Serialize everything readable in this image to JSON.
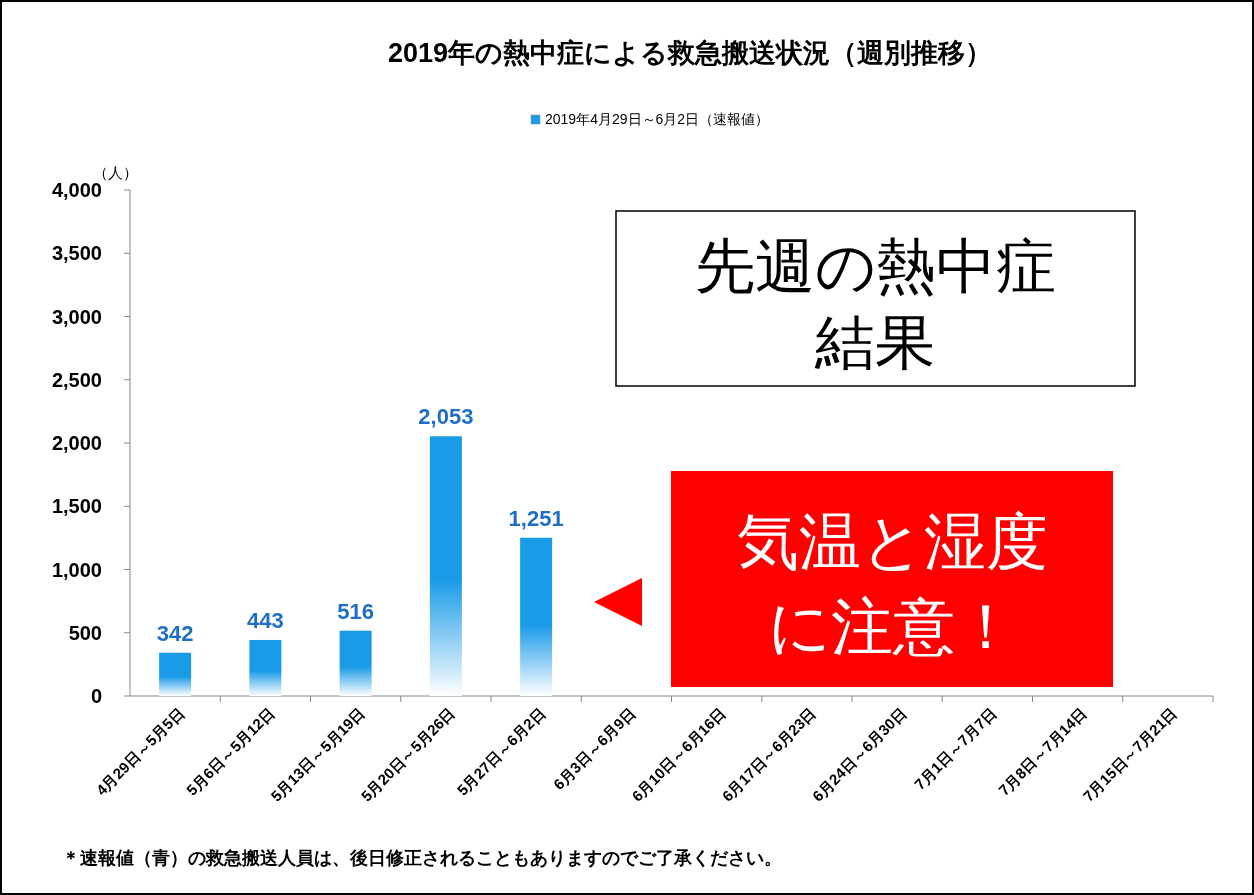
{
  "chart_data": {
    "type": "bar",
    "title": "2019年の熱中症による救急搬送状況（週別推移）",
    "ylabel": "（人）",
    "categories": [
      "4月29日～5月5日",
      "5月6日～5月12日",
      "5月13日～5月19日",
      "5月20日～5月26日",
      "5月27日～6月2日",
      "6月3日～6月9日",
      "6月10日～6月16日",
      "6月17日～6月23日",
      "6月24日～6月30日",
      "7月1日～7月7日",
      "7月8日～7月14日",
      "7月15日～7月21日"
    ],
    "series": [
      {
        "name": "2019年4月29日～6月2日（速報値）",
        "color": "#1a9be8",
        "values": [
          342,
          443,
          516,
          2053,
          1251,
          null,
          null,
          null,
          null,
          null,
          null,
          null
        ],
        "value_labels": [
          "342",
          "443",
          "516",
          "2,053",
          "1,251",
          null,
          null,
          null,
          null,
          null,
          null,
          null
        ]
      }
    ],
    "ylim": [
      0,
      4000
    ],
    "yticks": [
      {
        "value": 0,
        "label": "0"
      },
      {
        "value": 500,
        "label": "500"
      },
      {
        "value": 1000,
        "label": "1,000"
      },
      {
        "value": 1500,
        "label": "1,500"
      },
      {
        "value": 2000,
        "label": "2,000"
      },
      {
        "value": 2500,
        "label": "2,500"
      },
      {
        "value": 3000,
        "label": "3,000"
      },
      {
        "value": 3500,
        "label": "3,500"
      },
      {
        "value": 4000,
        "label": "4,000"
      }
    ],
    "legend": "top",
    "grid": false,
    "annotations": [
      "先週の熱中症",
      "結果",
      "気温と湿度",
      "に注意！",
      "＊速報値（青）の救急搬送人員は、後日修正されることもありますのでご了承ください。"
    ]
  }
}
